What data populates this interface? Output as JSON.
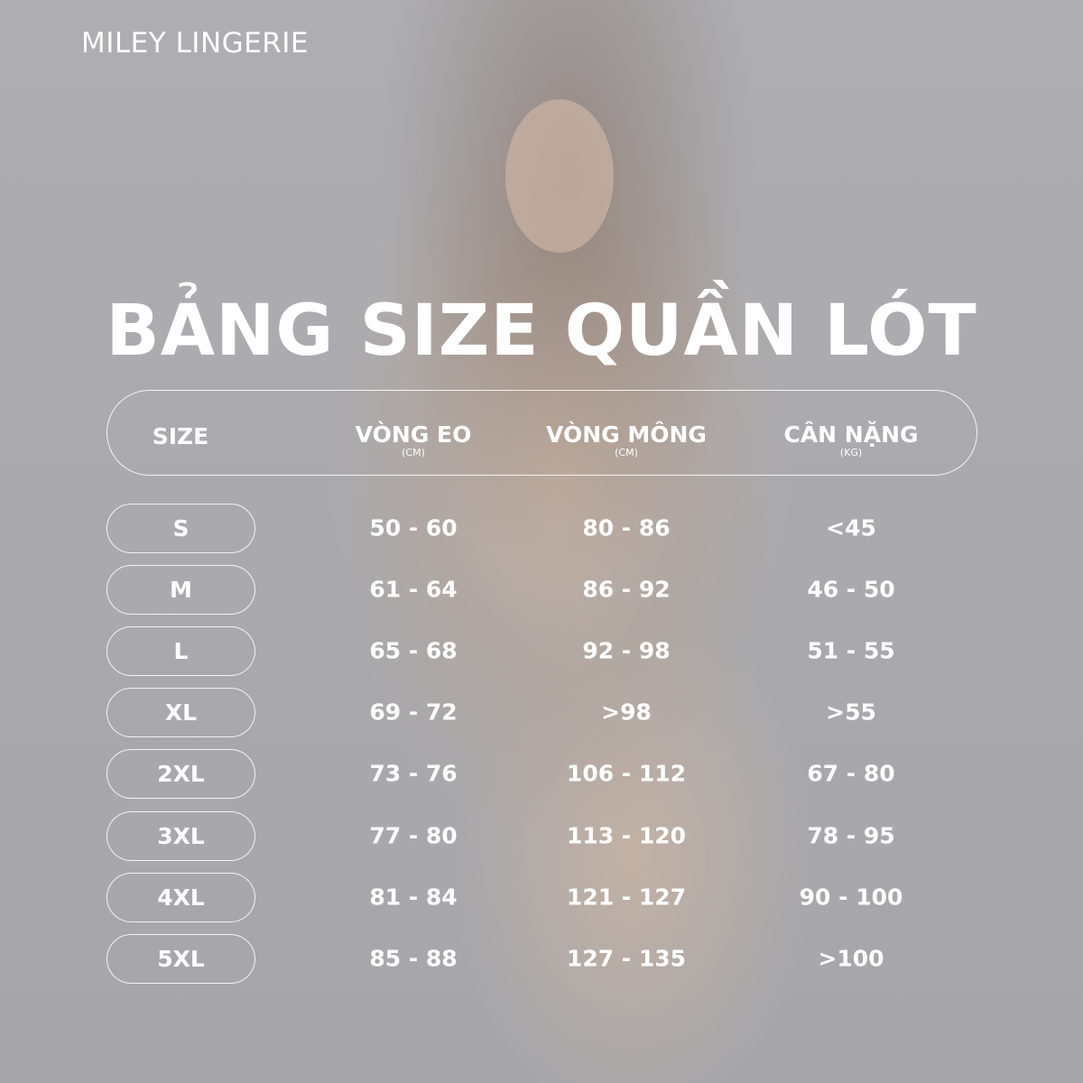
{
  "brand": "MILEY LINGERIE",
  "title": "BẢNG SIZE QUẦN LÓT",
  "header": {
    "size": "SIZE",
    "waist": "VÒNG EO",
    "waist_unit": "(CM)",
    "hip": "VÒNG MÔNG",
    "hip_unit": "(CM)",
    "weight": "CÂN NẶNG",
    "weight_unit": "(KG)"
  },
  "rows": [
    {
      "size": "S",
      "waist": "50 - 60",
      "hip": "80 - 86",
      "weight": "<45"
    },
    {
      "size": "M",
      "waist": "61 - 64",
      "hip": "86 - 92",
      "weight": "46 - 50"
    },
    {
      "size": "L",
      "waist": "65 - 68",
      "hip": "92 - 98",
      "weight": "51 - 55"
    },
    {
      "size": "XL",
      "waist": "69 - 72",
      "hip": ">98",
      "weight": ">55"
    },
    {
      "size": "2XL",
      "waist": "73 - 76",
      "hip": "106 - 112",
      "weight": "67 - 80"
    },
    {
      "size": "3XL",
      "waist": "77 - 80",
      "hip": "113 - 120",
      "weight": "78 - 95"
    },
    {
      "size": "4XL",
      "waist": "81 - 84",
      "hip": "121 - 127",
      "weight": "90 - 100"
    },
    {
      "size": "5XL",
      "waist": "85 - 88",
      "hip": "127 - 135",
      "weight": ">100"
    }
  ],
  "colors": {
    "background": "#a9a9ad",
    "text": "#ffffff"
  }
}
